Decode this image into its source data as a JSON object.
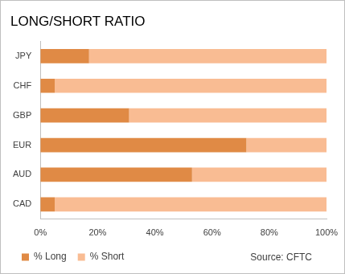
{
  "chart_data": {
    "type": "bar",
    "title": "LONG/SHORT RATIO",
    "orientation": "horizontal",
    "stacked": true,
    "grid": false,
    "legend": "bottom",
    "annotation": "Source: CFTC",
    "categories": [
      "JPY",
      "CHF",
      "GBP",
      "EUR",
      "AUD",
      "CAD"
    ],
    "series": [
      {
        "name": "% Long",
        "color": "#e08a45",
        "values": [
          17,
          5,
          31,
          72,
          53,
          5
        ]
      },
      {
        "name": "% Short",
        "color": "#f9bc93",
        "values": [
          83,
          95,
          69,
          28,
          47,
          95
        ]
      }
    ],
    "xlim": [
      0,
      100
    ],
    "xticks": [
      {
        "value": 0,
        "label": "0%"
      },
      {
        "value": 20,
        "label": "20%"
      },
      {
        "value": 40,
        "label": "40%"
      },
      {
        "value": 60,
        "label": "60%"
      },
      {
        "value": 80,
        "label": "80%"
      },
      {
        "value": 100,
        "label": "100%"
      }
    ]
  }
}
